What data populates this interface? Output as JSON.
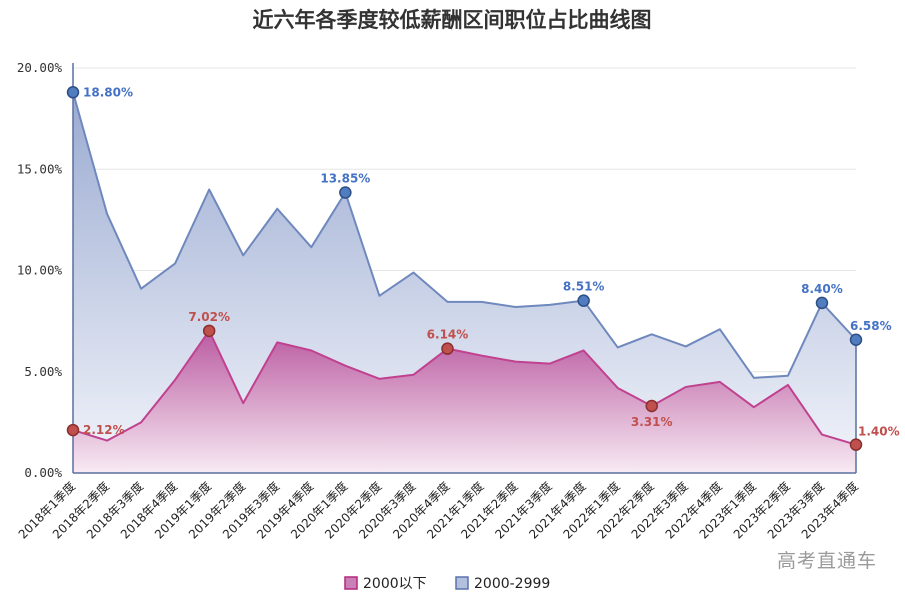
{
  "chart_data": {
    "type": "area",
    "title": "近六年各季度较低薪酬区间职位占比曲线图",
    "categories": [
      "2018年1季度",
      "2018年2季度",
      "2018年3季度",
      "2018年4季度",
      "2019年1季度",
      "2019年2季度",
      "2019年3季度",
      "2019年4季度",
      "2020年1季度",
      "2020年2季度",
      "2020年3季度",
      "2020年4季度",
      "2021年1季度",
      "2021年2季度",
      "2021年3季度",
      "2021年4季度",
      "2022年1季度",
      "2022年2季度",
      "2022年3季度",
      "2022年4季度",
      "2023年1季度",
      "2023年2季度",
      "2023年3季度",
      "2023年4季度"
    ],
    "ylim": [
      0,
      20
    ],
    "yticks": [
      "0.00%",
      "5.00%",
      "10.00%",
      "15.00%",
      "20.00%"
    ],
    "grid": true,
    "legend_position": "bottom",
    "series": [
      {
        "name": "2000以下",
        "color": "#c0418f",
        "values": [
          2.12,
          1.6,
          2.5,
          4.6,
          7.02,
          3.45,
          6.45,
          6.05,
          5.3,
          4.65,
          4.85,
          6.14,
          5.8,
          5.5,
          5.4,
          6.05,
          4.2,
          3.31,
          4.25,
          4.5,
          3.25,
          4.35,
          1.9,
          1.4
        ],
        "labels": [
          {
            "index": 0,
            "text": "2.12%"
          },
          {
            "index": 4,
            "text": "7.02%"
          },
          {
            "index": 11,
            "text": "6.14%"
          },
          {
            "index": 17,
            "text": "3.31%"
          },
          {
            "index": 23,
            "text": "1.40%"
          }
        ]
      },
      {
        "name": "2000-2999",
        "color": "#6f88bd",
        "values": [
          18.8,
          12.8,
          9.1,
          10.35,
          14.0,
          10.75,
          13.05,
          11.15,
          13.85,
          8.75,
          9.9,
          8.45,
          8.45,
          8.2,
          8.3,
          8.51,
          6.2,
          6.85,
          6.25,
          7.1,
          4.7,
          4.8,
          8.4,
          6.58
        ],
        "labels": [
          {
            "index": 0,
            "text": "18.80%"
          },
          {
            "index": 8,
            "text": "13.85%"
          },
          {
            "index": 15,
            "text": "8.51%"
          },
          {
            "index": 22,
            "text": "8.40%"
          },
          {
            "index": 23,
            "text": "6.58%"
          }
        ]
      }
    ]
  },
  "watermark": "高考直通车"
}
